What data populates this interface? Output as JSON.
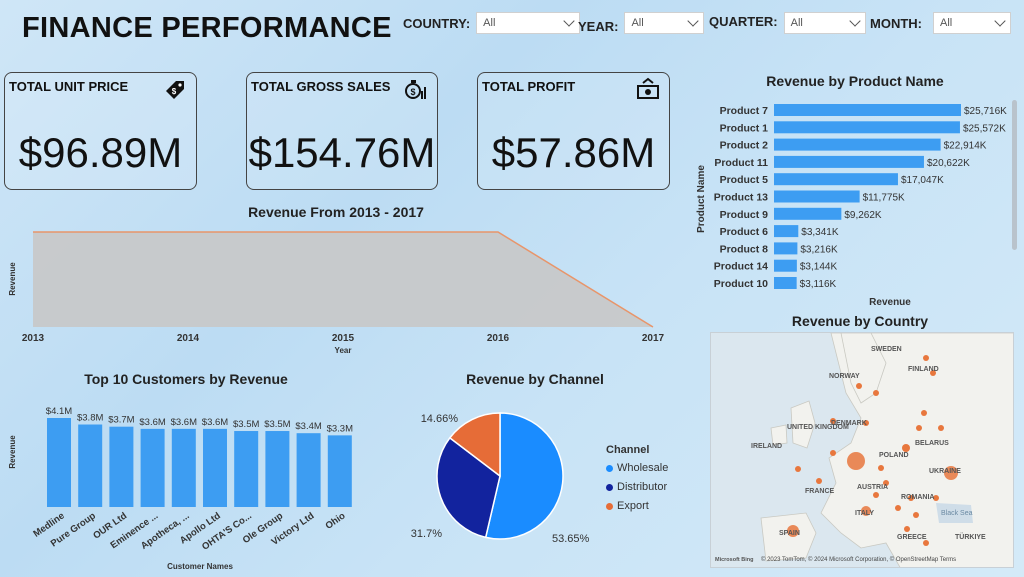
{
  "header": {
    "title": "FINANCE PERFORMANCE"
  },
  "filters": [
    {
      "label": "COUNTRY:",
      "value": "All"
    },
    {
      "label": "YEAR:",
      "value": "All"
    },
    {
      "label": "QUARTER:",
      "value": "All"
    },
    {
      "label": "MONTH:",
      "value": "All"
    }
  ],
  "kpis": [
    {
      "label": "TOTAL UNIT PRICE",
      "value": "$96.89M",
      "icon": "price-tag-icon"
    },
    {
      "label": "TOTAL GROSS SALES",
      "value": "$154.76M",
      "icon": "money-bag-icon"
    },
    {
      "label": "TOTAL PROFIT",
      "value": "$57.86M",
      "icon": "cash-icon"
    }
  ],
  "colors": {
    "bar": "#3d9df2",
    "area_fill": "#c8c8c8",
    "area_line": "#e8956a",
    "wholesale": "#1a8cff",
    "distributor": "#12239e",
    "export": "#e66c37",
    "bubble": "#e8773d"
  },
  "chart_data": [
    {
      "type": "area",
      "title": "Revenue From 2013 - 2017",
      "xlabel": "Year",
      "ylabel": "Revenue",
      "x": [
        "2013",
        "2014",
        "2015",
        "2016",
        "2017"
      ],
      "values": [
        1,
        1,
        1,
        1,
        0
      ],
      "ylim": [
        0,
        1
      ]
    },
    {
      "type": "bar",
      "orientation": "horizontal",
      "title": "Revenue by Product Name",
      "xlabel": "Revenue",
      "ylabel": "Product Name",
      "categories": [
        "Product 7",
        "Product 1",
        "Product 2",
        "Product 11",
        "Product 5",
        "Product 13",
        "Product 9",
        "Product 6",
        "Product 8",
        "Product 14",
        "Product 10"
      ],
      "values": [
        25716,
        25572,
        22914,
        20622,
        17047,
        11775,
        9262,
        3341,
        3216,
        3144,
        3116
      ],
      "value_labels": [
        "$25,716K",
        "$25,572K",
        "$22,914K",
        "$20,622K",
        "$17,047K",
        "$11,775K",
        "$9,262K",
        "$3,341K",
        "$3,216K",
        "$3,144K",
        "$3,116K"
      ]
    },
    {
      "type": "bar",
      "title": "Top 10 Customers by Revenue",
      "xlabel": "Customer Names",
      "ylabel": "Revenue",
      "categories": [
        "Medline",
        "Pure Group",
        "OUR Ltd",
        "Eminence ...",
        "Apotheca, ...",
        "Apollo Ltd",
        "OHTA'S Co...",
        "Ole Group",
        "Victory Ltd",
        "Ohio"
      ],
      "values": [
        4.1,
        3.8,
        3.7,
        3.6,
        3.6,
        3.6,
        3.5,
        3.5,
        3.4,
        3.3
      ],
      "value_labels": [
        "$4.1M",
        "$3.8M",
        "$3.7M",
        "$3.6M",
        "$3.6M",
        "$3.6M",
        "$3.5M",
        "$3.5M",
        "$3.4M",
        "$3.3M"
      ]
    },
    {
      "type": "pie",
      "title": "Revenue by Channel",
      "legend_title": "Channel",
      "legend_position": "right",
      "series": [
        {
          "name": "Wholesale",
          "value": 53.65,
          "label": "53.65%"
        },
        {
          "name": "Distributor",
          "value": 31.7,
          "label": "31.7%"
        },
        {
          "name": "Export",
          "value": 14.66,
          "label": "14.66%"
        }
      ]
    }
  ],
  "map": {
    "title": "Revenue by Country",
    "labels": [
      "SWEDEN",
      "FINLAND",
      "NORWAY",
      "UNITED KINGDOM",
      "DENMARK",
      "IRELAND",
      "BELARUS",
      "POLAND",
      "UKRAINE",
      "FRANCE",
      "AUSTRIA",
      "ROMANIA",
      "ITALY",
      "SPAIN",
      "GREECE",
      "TÜRKIYE",
      "Black Sea"
    ],
    "attribution": "© 2023 TomTom, © 2024 Microsoft Corporation, © OpenStreetMap Terms",
    "logo": "Microsoft Bing"
  }
}
